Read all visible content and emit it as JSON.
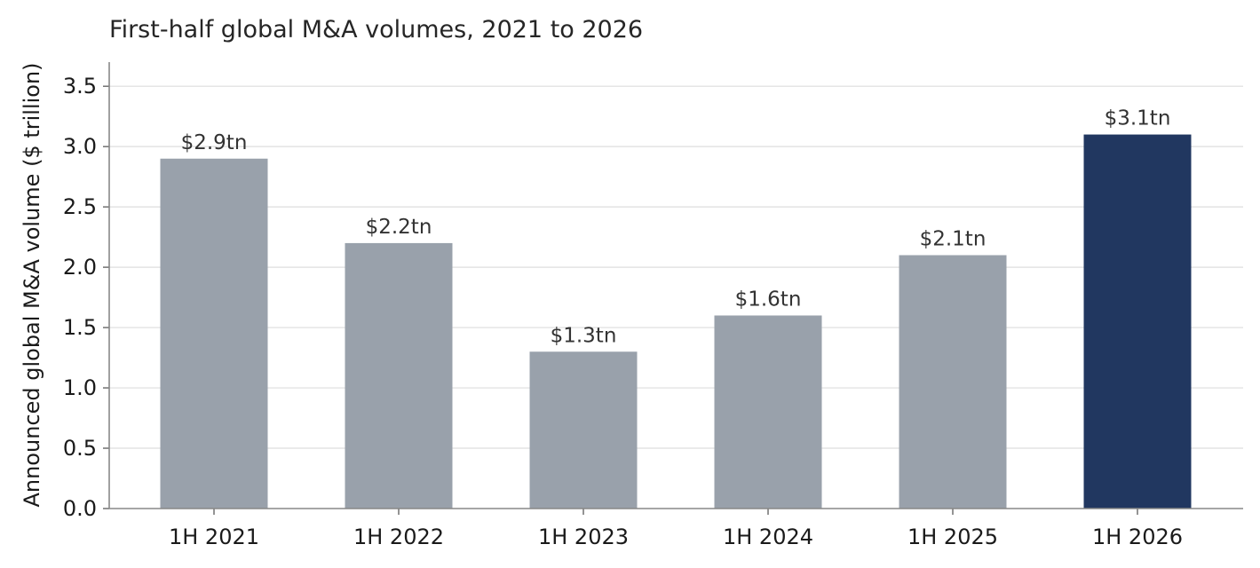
{
  "chart_data": {
    "type": "bar",
    "title": "First-half global M&A volumes, 2021 to 2026",
    "xlabel": "",
    "ylabel": "Announced global M&A volume ($ trillion)",
    "categories": [
      "1H 2021",
      "1H 2022",
      "1H 2023",
      "1H 2024",
      "1H 2025",
      "1H 2026"
    ],
    "values": [
      2.9,
      2.2,
      1.3,
      1.6,
      2.1,
      3.1
    ],
    "data_labels": [
      "$2.9tn",
      "$2.2tn",
      "$1.3tn",
      "$1.6tn",
      "$2.1tn",
      "$3.1tn"
    ],
    "ylim": [
      0,
      3.7
    ],
    "yticks": [
      0.0,
      0.5,
      1.0,
      1.5,
      2.0,
      2.5,
      3.0,
      3.5
    ],
    "ytick_labels": [
      "0.0",
      "0.5",
      "1.0",
      "1.5",
      "2.0",
      "2.5",
      "3.0",
      "3.5"
    ],
    "grid": "horizontal",
    "legend": "none",
    "colors": {
      "default_bar": "#99a1ab",
      "highlight_bar": "#213760",
      "highlight_index": 5
    }
  }
}
